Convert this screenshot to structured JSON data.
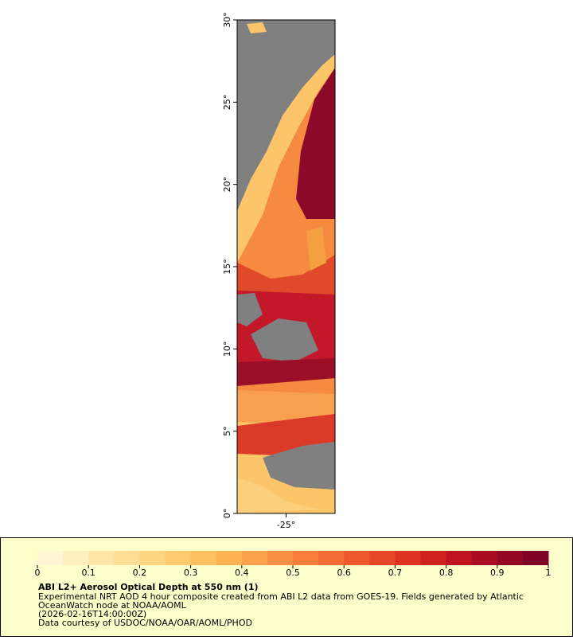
{
  "map": {
    "lat_range": [
      0,
      30
    ],
    "lat_ticks": [
      {
        "value": 0,
        "label": "0°"
      },
      {
        "value": 5,
        "label": "5°"
      },
      {
        "value": 10,
        "label": "10°"
      },
      {
        "value": 15,
        "label": "15°"
      },
      {
        "value": 20,
        "label": "20°"
      },
      {
        "value": 25,
        "label": "25°"
      },
      {
        "value": 30,
        "label": "30°"
      }
    ],
    "lon_range": [
      -28,
      -22
    ],
    "lon_ticks": [
      {
        "value": -25,
        "label": "-25°"
      }
    ]
  },
  "colorbar": {
    "range": [
      0,
      1
    ],
    "ticks": [
      0,
      0.1,
      0.2,
      0.3,
      0.4,
      0.5,
      0.6,
      0.7,
      0.8,
      0.9,
      1
    ],
    "colors": [
      "#fff6d5",
      "#ffefc0",
      "#ffe6a8",
      "#ffde95",
      "#ffd580",
      "#fecb6e",
      "#fec060",
      "#fdb254",
      "#fca24a",
      "#fa9142",
      "#f77f3b",
      "#f36c34",
      "#ee582d",
      "#e74527",
      "#dd3222",
      "#cf221f",
      "#bd141f",
      "#a80b23",
      "#930625",
      "#7f0325"
    ]
  },
  "legend": {
    "title": "ABI L2+ Aerosol Optical Depth at 550 nm (1)",
    "lines": [
      "Experimental NRT AOD 4 hour composite created from ABI L2 data from GOES-19. Fields generated by Atlantic",
      "OceanWatch node at NOAA/AOML",
      "(2026-02-16T14:00:00Z)",
      "Data courtesy of USDOC/NOAA/OAR/AOML/PHOD"
    ]
  }
}
